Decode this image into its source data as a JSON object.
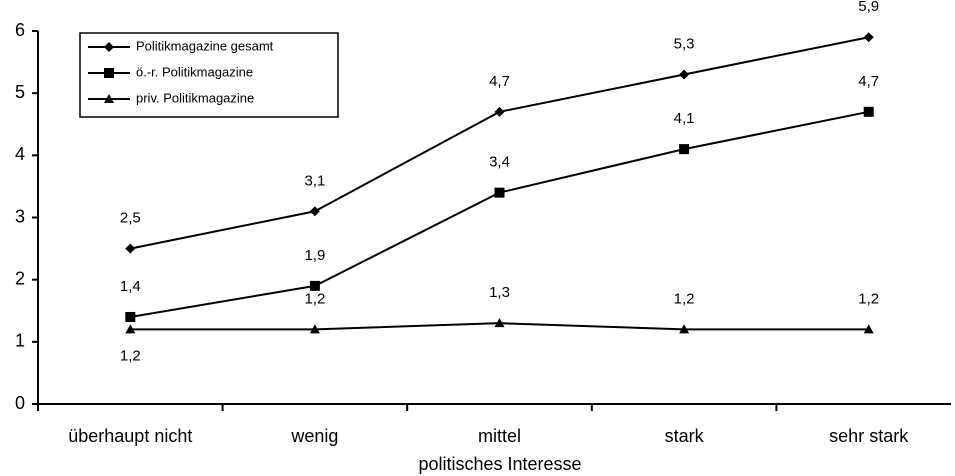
{
  "chart_data": {
    "type": "line",
    "x_label": "politisches Interesse",
    "categories": [
      "überhaupt nicht",
      "wenig",
      "mittel",
      "stark",
      "sehr stark"
    ],
    "series": [
      {
        "name": "Politikmagazine gesamt",
        "color": "#000000",
        "marker": "diamond",
        "values": [
          2.5,
          3.1,
          4.7,
          5.3,
          5.9
        ],
        "value_labels": [
          "2,5",
          "3,1",
          "4,7",
          "5,3",
          "5,9"
        ]
      },
      {
        "name": "ö.-r. Politikmagazine",
        "color": "#000000",
        "marker": "square",
        "values": [
          1.4,
          1.9,
          3.4,
          4.1,
          4.7
        ],
        "value_labels": [
          "1,4",
          "1,9",
          "3,4",
          "4,1",
          "4,7"
        ]
      },
      {
        "name": "priv. Politikmagazine",
        "color": "#000000",
        "marker": "triangle",
        "values": [
          1.2,
          1.2,
          1.3,
          1.2,
          1.2
        ],
        "value_labels": [
          "1,2",
          "1,2",
          "1,3",
          "1,2",
          "1,2"
        ]
      }
    ],
    "ylim": [
      0,
      6
    ],
    "yticks": [
      0,
      1,
      2,
      3,
      4,
      5,
      6
    ],
    "grid": false,
    "legend": "upper left"
  }
}
